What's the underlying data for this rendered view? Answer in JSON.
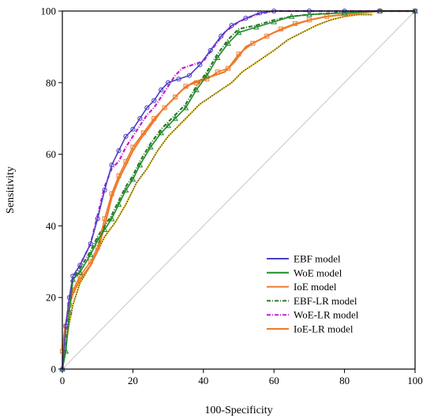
{
  "chart_data": {
    "type": "line",
    "title": "",
    "xlabel": "100-Specificity",
    "ylabel": "Sensitivity",
    "xlim": [
      0,
      100
    ],
    "ylim": [
      0,
      100
    ],
    "x_ticks": [
      0,
      20,
      40,
      60,
      80,
      100
    ],
    "y_ticks": [
      0,
      20,
      40,
      60,
      80,
      100
    ],
    "grid": false,
    "legend_position": "bottom-right",
    "reference_line": {
      "x": [
        0,
        100
      ],
      "y": [
        0,
        100
      ],
      "color": "#c8c8c8"
    },
    "series": [
      {
        "name": "EBF model",
        "color": "#4b3fc4",
        "marker": "circle",
        "dash": "",
        "x": [
          0,
          1,
          2,
          3,
          5,
          8,
          10,
          12,
          14,
          16,
          18,
          20,
          22,
          24,
          26,
          28,
          30,
          33,
          36,
          39,
          42,
          45,
          48,
          52,
          56,
          60,
          70,
          80,
          90,
          100
        ],
        "y": [
          0,
          12,
          20,
          26,
          29,
          35,
          42,
          50,
          57,
          61,
          65,
          67,
          70,
          73,
          75,
          78,
          80,
          81,
          82,
          85,
          89,
          93,
          96,
          98,
          99.5,
          100,
          100,
          100,
          100,
          100
        ]
      },
      {
        "name": "WoE model",
        "color": "#1f8a2a",
        "marker": "triangle",
        "dash": "",
        "x": [
          0,
          1,
          2,
          3,
          5,
          8,
          10,
          12,
          14,
          16,
          18,
          20,
          22,
          25,
          28,
          30,
          32,
          35,
          38,
          41,
          44,
          47,
          50,
          55,
          60,
          65,
          70,
          80,
          90,
          100
        ],
        "y": [
          0,
          5,
          16,
          25,
          27,
          32,
          36,
          39,
          42,
          46,
          50,
          53,
          57,
          62,
          66,
          68,
          70,
          73,
          78,
          82,
          87,
          91,
          94,
          95.5,
          97,
          98.5,
          99,
          99.5,
          100,
          100
        ]
      },
      {
        "name": "IoE model",
        "color": "#f07a2a",
        "marker": "square",
        "dash": "",
        "x": [
          0,
          1,
          2,
          3,
          5,
          8,
          10,
          12,
          14,
          16,
          18,
          20,
          23,
          26,
          29,
          32,
          35,
          38,
          41,
          44,
          47,
          50,
          54,
          58,
          62,
          66,
          70,
          75,
          80,
          90,
          100
        ],
        "y": [
          5,
          12,
          18,
          22,
          26,
          30,
          34,
          42,
          49,
          54,
          58,
          62,
          66,
          70,
          73,
          76,
          79,
          80,
          81,
          83,
          84,
          88,
          91,
          93,
          95,
          96.5,
          97.5,
          98.5,
          99,
          100,
          100
        ]
      },
      {
        "name": "EBF-LR model",
        "color": "#2a7a2a",
        "marker": "",
        "dash": "5,2,1,2",
        "x": [
          0,
          1,
          2,
          3,
          5,
          8,
          10,
          12,
          14,
          16,
          18,
          20,
          22,
          25,
          28,
          30,
          32,
          35,
          38,
          41,
          44,
          47,
          50,
          55,
          60,
          65,
          70,
          80,
          90,
          100
        ],
        "y": [
          0,
          6,
          17,
          25,
          28,
          33,
          37,
          40,
          43,
          47,
          51,
          54,
          58,
          63,
          67,
          69,
          71,
          74,
          79,
          83,
          88,
          92,
          95,
          96,
          97.5,
          98.5,
          99,
          99.7,
          100,
          100
        ]
      },
      {
        "name": "WoE-LR model",
        "color": "#c51bd0",
        "marker": "",
        "dash": "5,2,1,2",
        "x": [
          0,
          1,
          2,
          3,
          5,
          8,
          10,
          12,
          14,
          16,
          18,
          20,
          22,
          24,
          26,
          28,
          30,
          32,
          34,
          37,
          40,
          43,
          46,
          50,
          55,
          60,
          70,
          80,
          90,
          100
        ],
        "y": [
          0,
          12,
          20,
          25,
          29,
          35,
          43,
          51,
          56,
          58,
          62,
          65,
          68,
          71,
          73,
          76,
          79,
          82,
          84,
          85,
          86,
          90,
          94,
          97,
          99,
          100,
          100,
          100,
          100,
          100
        ]
      },
      {
        "name": "IoE-LR model",
        "color": "#f07a2a",
        "marker": "",
        "dash": "",
        "x": [
          0,
          1,
          2,
          3,
          5,
          8,
          10,
          12,
          14,
          16,
          18,
          20,
          22,
          25,
          28,
          31,
          34,
          37,
          40,
          43,
          46,
          49,
          52,
          56,
          60,
          65,
          70,
          75,
          80,
          90,
          100
        ],
        "y": [
          6,
          13,
          18,
          21,
          25,
          29,
          33,
          40,
          48,
          53,
          57,
          61,
          64,
          68,
          72,
          75,
          78,
          80,
          81,
          82,
          83,
          86,
          90,
          92,
          94,
          96,
          97.5,
          98.5,
          99,
          100,
          100
        ]
      },
      {
        "name": "",
        "color": "#e5c63a",
        "marker": "",
        "dash": "",
        "x": [
          0,
          1,
          2,
          3,
          5,
          8,
          10,
          12,
          15,
          18,
          21,
          24,
          27,
          30,
          33,
          36,
          39,
          42,
          45,
          48,
          51,
          54,
          57,
          60,
          64,
          68,
          72,
          76,
          80,
          84,
          88
        ],
        "y": [
          0,
          7,
          13,
          18,
          24,
          29,
          33,
          37,
          41,
          46,
          52,
          56,
          61,
          65,
          68,
          71,
          74,
          76,
          78,
          80,
          83,
          85,
          87,
          89,
          92,
          94,
          96,
          97.5,
          98.5,
          99,
          99
        ]
      }
    ]
  }
}
